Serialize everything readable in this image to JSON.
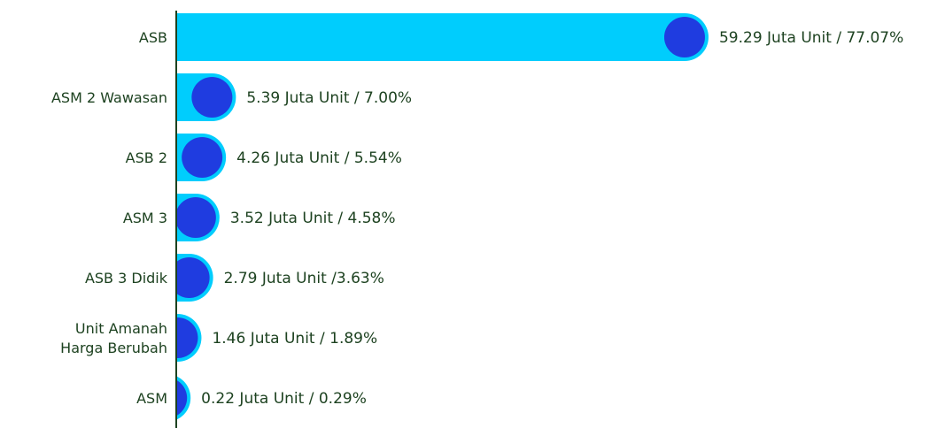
{
  "chart_data": {
    "type": "bar",
    "categories": [
      "ASB",
      "ASM 2 Wawasan",
      "ASB 2",
      "ASM 3",
      "ASB 3 Didik",
      "Unit Amanah Harga Berubah",
      "ASM"
    ],
    "values": [
      59.29,
      5.39,
      4.26,
      3.52,
      2.79,
      1.46,
      0.22
    ],
    "value_labels": [
      "59.29 Juta Unit / 77.07%",
      "5.39 Juta Unit / 7.00%",
      "4.26 Juta Unit / 5.54%",
      "3.52 Juta Unit / 4.58%",
      "2.79 Juta Unit /3.63%",
      "1.46 Juta Unit / 1.89%",
      "0.22 Juta Unit / 0.29%"
    ],
    "color": "#00cdfd",
    "marker_color": "#1f3ce0"
  }
}
